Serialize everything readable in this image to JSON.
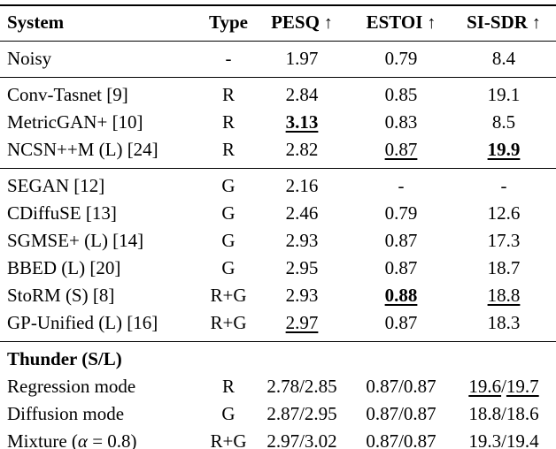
{
  "colors": {
    "text": "#000000",
    "rule": "#000000",
    "background": "#ffffff"
  },
  "table": {
    "columns": [
      {
        "key": "system",
        "label": "System",
        "arrow": "",
        "align": "left"
      },
      {
        "key": "type",
        "label": "Type",
        "arrow": "",
        "align": "center"
      },
      {
        "key": "pesq",
        "label": "PESQ",
        "arrow": "↑",
        "align": "center"
      },
      {
        "key": "estoi",
        "label": "ESTOI",
        "arrow": "↑",
        "align": "center"
      },
      {
        "key": "si-sdr",
        "label": "SI-SDR",
        "arrow": "↑",
        "align": "center"
      }
    ],
    "groups": [
      {
        "name": "noisy",
        "rows": [
          {
            "name": "noisy",
            "cells": [
              "Noisy",
              "-",
              "1.97",
              "0.79",
              "8.4"
            ]
          }
        ]
      },
      {
        "name": "regression-systems",
        "rows": [
          {
            "name": "conv-tasnet",
            "cells": [
              "Conv-Tasnet [9]",
              "R",
              "2.84",
              "0.85",
              "19.1"
            ]
          },
          {
            "name": "metricgan-plus",
            "cells": [
              "MetricGAN+ [10]",
              "R",
              [
                {
                  "t": "3.13",
                  "b": true,
                  "u": true
                }
              ],
              "0.83",
              "8.5"
            ]
          },
          {
            "name": "ncsn-plus-plus-m",
            "cells": [
              "NCSN++M (L) [24]",
              "R",
              "2.82",
              [
                {
                  "t": "0.87",
                  "u": true
                }
              ],
              [
                {
                  "t": "19.9",
                  "b": true,
                  "u": true
                }
              ]
            ]
          }
        ]
      },
      {
        "name": "generative-systems",
        "rows": [
          {
            "name": "segan",
            "cells": [
              "SEGAN [12]",
              "G",
              "2.16",
              "-",
              "-"
            ]
          },
          {
            "name": "cdiffuse",
            "cells": [
              "CDiffuSE [13]",
              "G",
              "2.46",
              "0.79",
              "12.6"
            ]
          },
          {
            "name": "sgmse-plus",
            "cells": [
              "SGMSE+ (L) [14]",
              "G",
              "2.93",
              "0.87",
              "17.3"
            ]
          },
          {
            "name": "bbed",
            "cells": [
              "BBED (L) [20]",
              "G",
              "2.95",
              "0.87",
              "18.7"
            ]
          },
          {
            "name": "storm",
            "cells": [
              "StoRM (S) [8]",
              "R+G",
              "2.93",
              [
                {
                  "t": "0.88",
                  "b": true,
                  "u": true
                }
              ],
              [
                {
                  "t": "18.8",
                  "u": true
                }
              ]
            ]
          },
          {
            "name": "gp-unified",
            "cells": [
              "GP-Unified (L) [16]",
              "R+G",
              [
                {
                  "t": "2.97",
                  "u": true
                }
              ],
              "0.87",
              "18.3"
            ]
          }
        ]
      },
      {
        "name": "thunder",
        "rows": [
          {
            "name": "thunder-header",
            "cells": [
              [
                {
                  "t": "Thunder (S/L)",
                  "b": true
                }
              ],
              "",
              "",
              "",
              ""
            ]
          },
          {
            "name": "regression-mode",
            "cells": [
              "Regression mode",
              "R",
              "2.78/2.85",
              "0.87/0.87",
              [
                {
                  "t": "19.6",
                  "u": true
                },
                {
                  "t": "/"
                },
                {
                  "t": "19.7",
                  "u": true
                }
              ]
            ]
          },
          {
            "name": "diffusion-mode",
            "cells": [
              "Diffusion mode",
              "G",
              "2.87/2.95",
              "0.87/0.87",
              "18.8/18.6"
            ]
          },
          {
            "name": "mixture-mode",
            "cells": [
              [
                {
                  "t": "Mixture ("
                },
                {
                  "t": "α",
                  "i": true
                },
                {
                  "t": " = 0.8)"
                }
              ],
              "R+G",
              [
                {
                  "t": "2.97",
                  "u": true
                },
                {
                  "t": "/"
                },
                {
                  "t": "3.02",
                  "u": true
                }
              ],
              [
                {
                  "t": "0.87",
                  "u": true
                },
                {
                  "t": "/"
                },
                {
                  "t": "0.87",
                  "u": true
                }
              ],
              "19.3/19.4"
            ]
          }
        ]
      }
    ]
  }
}
